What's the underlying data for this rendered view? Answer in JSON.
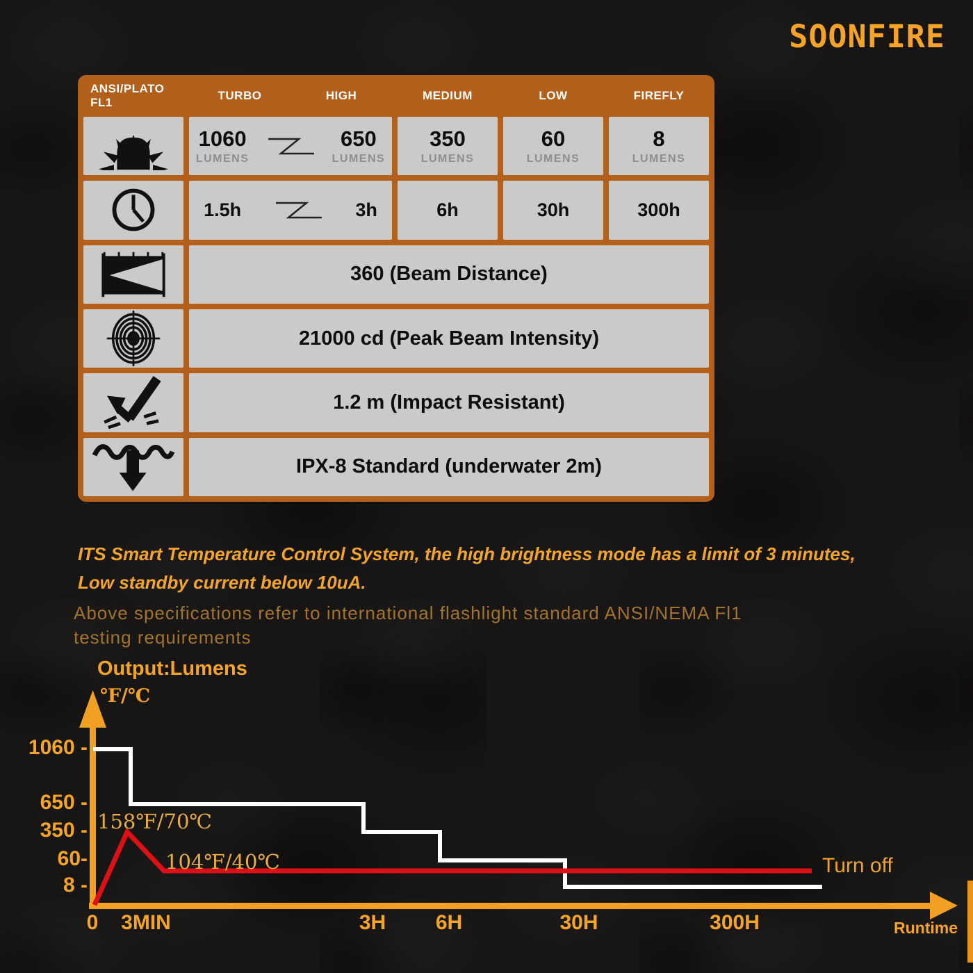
{
  "brand": {
    "logo": "SOONFIRE"
  },
  "spec_table": {
    "header": [
      "ANSI/PLATO FL1",
      "TURBO",
      "HIGH",
      "MEDIUM",
      "LOW",
      "FIREFLY"
    ],
    "rows": {
      "lumens": {
        "icon": "sun-burst-icon",
        "turbo": "1060",
        "high": "650",
        "medium": "350",
        "low": "60",
        "firefly": "8",
        "unit": "LUMENS"
      },
      "runtime": {
        "icon": "clock-icon",
        "turbo": "1.5h",
        "high": "3h",
        "medium": "6h",
        "low": "30h",
        "firefly": "300h"
      },
      "beam_distance": {
        "icon": "beam-distance-icon",
        "value": "360 (Beam Distance)"
      },
      "peak_intensity": {
        "icon": "target-icon",
        "value": "21000 cd (Peak Beam Intensity)"
      },
      "impact": {
        "icon": "impact-icon",
        "value": "1.2 m (Impact Resistant)"
      },
      "waterproof": {
        "icon": "waterproof-icon",
        "value": "IPX-8 Standard (underwater 2m)"
      }
    }
  },
  "notes": {
    "its_line1": "ITS Smart Temperature Control System, the high brightness mode has a limit of 3 minutes,",
    "its_line2": "Low standby current below 10uA.",
    "spec_line1": "Above specifications refer to international flashlight standard ANSI/NEMA Fl1",
    "spec_line2": "testing requirements"
  },
  "chart_data": {
    "type": "line",
    "title": "Output:Lumens",
    "y_axis_unit": "℉/℃",
    "x_axis_label": "Runtime",
    "y_ticks": [
      "1060 -",
      "650 -",
      "350 -",
      "60-",
      "8 -"
    ],
    "x_ticks": [
      "0",
      "3MIN",
      "3H",
      "6H",
      "30H",
      "300H"
    ],
    "legend_position": "none",
    "grid": false,
    "series": [
      {
        "name": "output-lumens",
        "color": "#ffffff",
        "style": "step",
        "steps": [
          {
            "from": "0",
            "to": "3MIN",
            "lumens": "1060"
          },
          {
            "from": "3MIN",
            "to": "3H",
            "lumens": "650"
          },
          {
            "from": "3H",
            "to": "6H",
            "lumens": "350"
          },
          {
            "from": "6H",
            "to": "30H",
            "lumens": "60"
          },
          {
            "from": "30H",
            "to": "end",
            "lumens": "8"
          }
        ]
      },
      {
        "name": "temperature",
        "color": "#dd1016",
        "style": "line",
        "description": "rises from 0 to peak 158F/70C near 3MIN, settles to 104F/40C until turn off"
      }
    ],
    "annotations": {
      "peak_temp": "158℉/70℃",
      "steady_temp": "104℉/40℃",
      "end_label": "Turn off"
    }
  },
  "colors": {
    "accent_orange": "#f5a427",
    "table_orange": "#b2601c",
    "cell_gray": "#cbcac8",
    "muted_brown": "#a2742d",
    "temp_red": "#dd1016",
    "line_white": "#ffffff",
    "background": "#171614"
  }
}
